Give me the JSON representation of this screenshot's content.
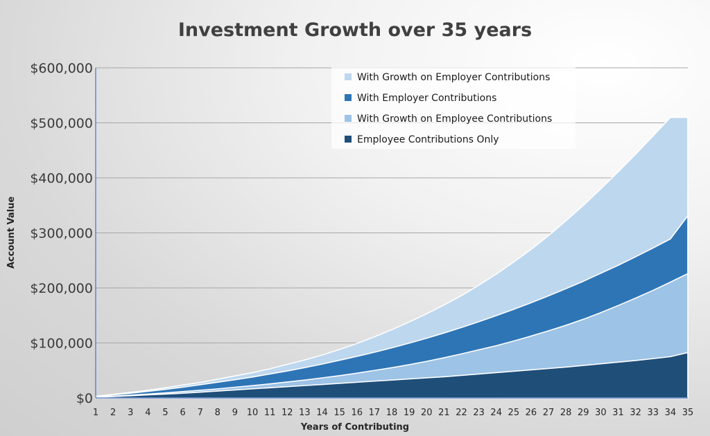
{
  "chart_data": {
    "type": "area",
    "stacked": false,
    "title": "Investment Growth over 35 years",
    "xlabel": "Years of Contributing",
    "ylabel": "Account Value",
    "x": [
      1,
      2,
      3,
      4,
      5,
      6,
      7,
      8,
      9,
      10,
      11,
      12,
      13,
      14,
      15,
      16,
      17,
      18,
      19,
      20,
      21,
      22,
      23,
      24,
      25,
      26,
      27,
      28,
      29,
      30,
      31,
      32,
      33,
      34,
      35
    ],
    "ylim": [
      0,
      600000
    ],
    "yticks": [
      0,
      100000,
      200000,
      300000,
      400000,
      500000,
      600000
    ],
    "ytick_labels": [
      "$0",
      "$100,000",
      "$200,000",
      "$300,000",
      "$400,000",
      "$500,000",
      "$600,000"
    ],
    "grid": true,
    "legend_position": "top-right",
    "series": [
      {
        "name": "With Growth on Employer Contributions",
        "color": "#bdd7ee",
        "values": [
          3000,
          6500,
          10000,
          14000,
          18500,
          23500,
          28000,
          34000,
          40000,
          46000,
          53000,
          61000,
          69000,
          78000,
          88000,
          99000,
          111000,
          124000,
          138000,
          153000,
          169000,
          186000,
          205000,
          225000,
          247000,
          270000,
          295000,
          322000,
          350000,
          380000,
          411000,
          443000,
          476000,
          510000,
          510000
        ]
      },
      {
        "name": "With Employer Contributions",
        "color": "#2e75b6",
        "values": [
          2500,
          5500,
          8500,
          12000,
          15500,
          19500,
          24000,
          28500,
          33000,
          38000,
          43500,
          49000,
          55000,
          61500,
          68500,
          75500,
          83000,
          91000,
          99500,
          108500,
          118000,
          128000,
          138500,
          149500,
          161000,
          173000,
          185500,
          198500,
          212000,
          226500,
          241000,
          256500,
          272500,
          289000,
          331000
        ]
      },
      {
        "name": "With Growth on Employee Contributions",
        "color": "#9dc3e6",
        "values": [
          1500,
          3200,
          5000,
          7000,
          9200,
          11500,
          14000,
          16500,
          19500,
          22500,
          25500,
          29000,
          32500,
          36500,
          40500,
          45000,
          50000,
          55000,
          60500,
          66500,
          73000,
          80000,
          87500,
          95000,
          103500,
          112500,
          122000,
          132000,
          143000,
          155000,
          168000,
          181500,
          195500,
          210500,
          226000
        ]
      },
      {
        "name": "Employee Contributions Only",
        "color": "#1f4e79",
        "values": [
          1000,
          2500,
          4000,
          5500,
          7000,
          8500,
          10500,
          12500,
          14500,
          16500,
          18500,
          20500,
          22500,
          24500,
          26500,
          28500,
          30500,
          32500,
          34500,
          36500,
          38500,
          41000,
          43500,
          46000,
          48500,
          51000,
          53500,
          56000,
          59000,
          62000,
          65000,
          68000,
          71500,
          75000,
          82500
        ]
      }
    ]
  }
}
